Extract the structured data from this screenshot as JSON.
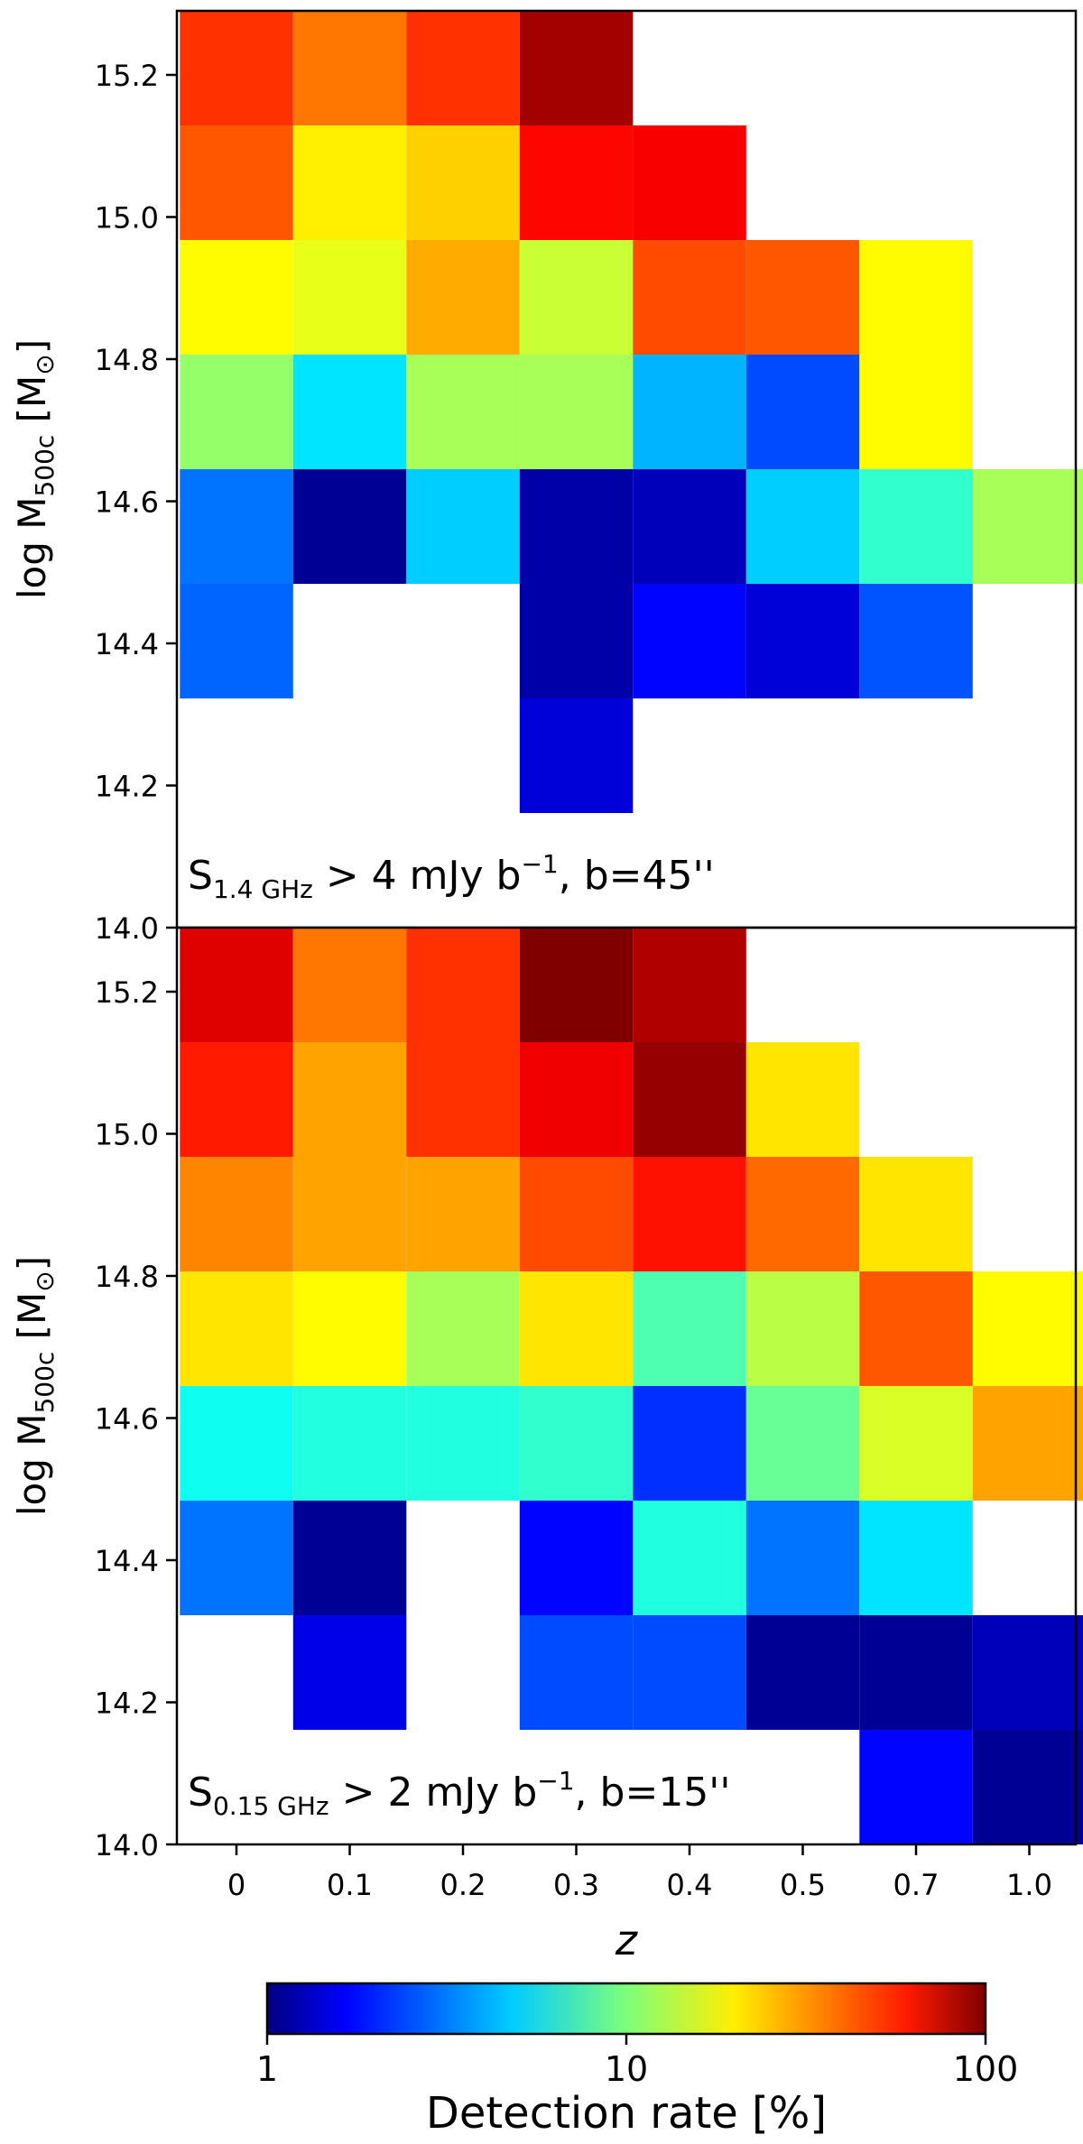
{
  "chart_data": [
    {
      "type": "heatmap",
      "panel": "top",
      "annotation": {
        "prefix": "S",
        "sub": "1.4 GHz",
        "mid": " > 4 mJy b",
        "sup": "−1",
        "suffix": ", b=45''"
      },
      "ylabel": {
        "main": "log M",
        "sub": "500c",
        "unit": " [M",
        "unit_sub": "⊙",
        "close": "]"
      },
      "x_categories": [
        "0",
        "0.1",
        "0.2",
        "0.3",
        "0.4",
        "0.5",
        "0.7",
        "1.0"
      ],
      "y_bins": [
        "15.2-15.4",
        "15.0-15.2",
        "14.8-15.0",
        "14.6-14.8",
        "14.4-14.6",
        "14.2-14.4",
        "14.0-14.2",
        "13.8-14.0"
      ],
      "yticks": [
        "14.0",
        "14.2",
        "14.4",
        "14.6",
        "14.8",
        "15.0",
        "15.2"
      ],
      "values_percent": [
        [
          45,
          33,
          45,
          85,
          null,
          null,
          null,
          null
        ],
        [
          38,
          19,
          22,
          55,
          58,
          null,
          null,
          null
        ],
        [
          18,
          16,
          26,
          14,
          40,
          38,
          18,
          null
        ],
        [
          11,
          5,
          12,
          12,
          4,
          2.5,
          18,
          null
        ],
        [
          3,
          1.1,
          4.5,
          1.2,
          1.3,
          4.5,
          7,
          12
        ],
        [
          2.8,
          null,
          null,
          1.2,
          1.8,
          1.5,
          2.6,
          null
        ],
        [
          null,
          null,
          null,
          1.5,
          null,
          null,
          null,
          null
        ],
        [
          null,
          null,
          null,
          null,
          null,
          null,
          null,
          null
        ]
      ]
    },
    {
      "type": "heatmap",
      "panel": "bottom",
      "annotation": {
        "prefix": "S",
        "sub": "0.15 GHz",
        "mid": " > 2 mJy b",
        "sup": "−1",
        "suffix": ", b=15''"
      },
      "ylabel": {
        "main": "log M",
        "sub": "500c",
        "unit": " [M",
        "unit_sub": "⊙",
        "close": "]"
      },
      "x_categories": [
        "0",
        "0.1",
        "0.2",
        "0.3",
        "0.4",
        "0.5",
        "0.7",
        "1.0"
      ],
      "xlabel": "z",
      "y_bins": [
        "15.2-15.4",
        "15.0-15.2",
        "14.8-15.0",
        "14.6-14.8",
        "14.4-14.6",
        "14.2-14.4",
        "14.0-14.2",
        "13.8-14.0"
      ],
      "yticks": [
        "14.0",
        "14.2",
        "14.4",
        "14.6",
        "14.8",
        "15.0",
        "15.2"
      ],
      "values_percent": [
        [
          65,
          33,
          45,
          100,
          80,
          null,
          null,
          null
        ],
        [
          50,
          27,
          45,
          60,
          90,
          20,
          null,
          null
        ],
        [
          31,
          27,
          27,
          40,
          52,
          35,
          20,
          null
        ],
        [
          20,
          18,
          12,
          20,
          8,
          13,
          38,
          18
        ],
        [
          6,
          6.5,
          6.5,
          7,
          2.2,
          9,
          15,
          27
        ],
        [
          3,
          1.1,
          null,
          1.8,
          6.5,
          3,
          5,
          null
        ],
        [
          null,
          1.6,
          null,
          2.5,
          2.5,
          1.1,
          1.1,
          1.3
        ],
        [
          null,
          null,
          null,
          null,
          null,
          null,
          1.8,
          1.1
        ]
      ]
    }
  ],
  "colorbar": {
    "label": "Detection rate [%]",
    "scale": "log",
    "range": [
      1,
      100
    ],
    "ticks": [
      "1",
      "10",
      "100"
    ],
    "colormap": "jet"
  }
}
